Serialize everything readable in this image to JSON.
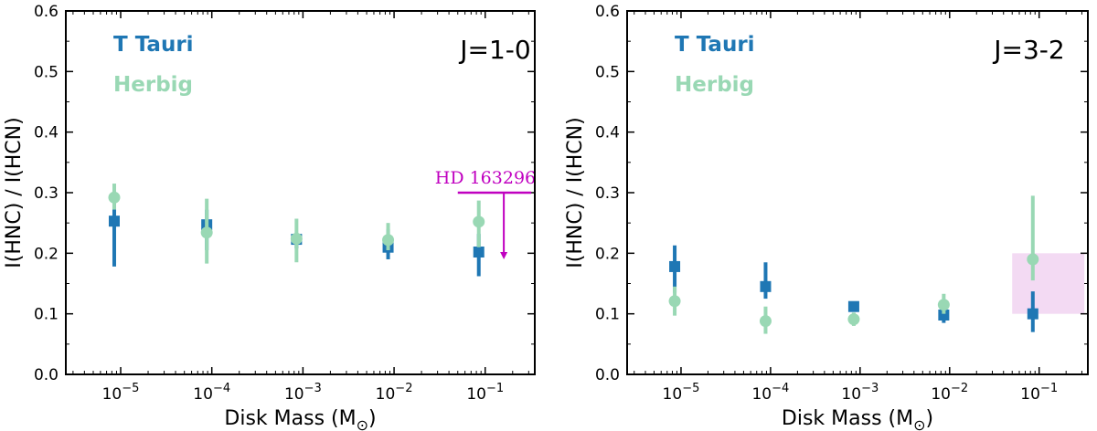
{
  "figure": {
    "ylabel": "I(HNC) / I(HCN)",
    "xlabel": "Disk Mass (M",
    "xlabel_sub": "⊙",
    "xlabel_close": ")"
  },
  "chart_data": [
    {
      "type": "scatter",
      "title": "J=1-0",
      "xlabel": "Disk Mass (M⊙)",
      "ylabel": "I(HNC) / I(HCN)",
      "xscale": "log",
      "xlim": [
        2.5e-06,
        0.35
      ],
      "ylim": [
        0,
        0.6
      ],
      "xticks": [
        1e-05,
        0.0001,
        0.001,
        0.01,
        0.1
      ],
      "xtick_labels": [
        [
          "10",
          "−5"
        ],
        [
          "10",
          "−4"
        ],
        [
          "10",
          "−3"
        ],
        [
          "10",
          "−2"
        ],
        [
          "10",
          "−1"
        ]
      ],
      "yticks": [
        0.0,
        0.1,
        0.2,
        0.3,
        0.4,
        0.5,
        0.6
      ],
      "ytick_labels": [
        "0.0",
        "0.1",
        "0.2",
        "0.3",
        "0.4",
        "0.5",
        "0.6"
      ],
      "legend": [
        {
          "label": "T Tauri",
          "color": "#1f77b4"
        },
        {
          "label": "Herbig",
          "color": "#99d8b4"
        }
      ],
      "series": [
        {
          "name": "T Tauri",
          "marker": "square",
          "color": "#1f77b4",
          "points": [
            {
              "x": 8.5e-06,
              "y": 0.253,
              "ylo": 0.178,
              "yhi": 0.285
            },
            {
              "x": 8.8e-05,
              "y": 0.247,
              "ylo": 0.205,
              "yhi": 0.272
            },
            {
              "x": 0.00085,
              "y": 0.223,
              "ylo": 0.208,
              "yhi": 0.232
            },
            {
              "x": 0.0086,
              "y": 0.21,
              "ylo": 0.19,
              "yhi": 0.24
            },
            {
              "x": 0.085,
              "y": 0.202,
              "ylo": 0.162,
              "yhi": 0.232
            }
          ]
        },
        {
          "name": "Herbig",
          "marker": "circle",
          "color": "#99d8b4",
          "points": [
            {
              "x": 8.5e-06,
              "y": 0.292,
              "ylo": 0.272,
              "yhi": 0.315
            },
            {
              "x": 8.8e-05,
              "y": 0.234,
              "ylo": 0.183,
              "yhi": 0.29
            },
            {
              "x": 0.00085,
              "y": 0.224,
              "ylo": 0.185,
              "yhi": 0.257
            },
            {
              "x": 0.0086,
              "y": 0.222,
              "ylo": 0.205,
              "yhi": 0.25
            },
            {
              "x": 0.085,
              "y": 0.252,
              "ylo": 0.21,
              "yhi": 0.287
            }
          ]
        }
      ],
      "annotation": {
        "type": "upper-limit",
        "label": "HD 163296",
        "color": "#c000c0",
        "x_from": 0.05,
        "x_to": 0.32,
        "y": 0.3,
        "arrow_x": 0.16,
        "arrow_to": 0.19
      }
    },
    {
      "type": "scatter",
      "title": "J=3-2",
      "xlabel": "Disk Mass (M⊙)",
      "ylabel": "I(HNC) / I(HCN)",
      "xscale": "log",
      "xlim": [
        2.5e-06,
        0.35
      ],
      "ylim": [
        0,
        0.6
      ],
      "xticks": [
        1e-05,
        0.0001,
        0.001,
        0.01,
        0.1
      ],
      "xtick_labels": [
        [
          "10",
          "−5"
        ],
        [
          "10",
          "−4"
        ],
        [
          "10",
          "−3"
        ],
        [
          "10",
          "−2"
        ],
        [
          "10",
          "−1"
        ]
      ],
      "yticks": [
        0.0,
        0.1,
        0.2,
        0.3,
        0.4,
        0.5,
        0.6
      ],
      "ytick_labels": [
        "0.0",
        "0.1",
        "0.2",
        "0.3",
        "0.4",
        "0.5",
        "0.6"
      ],
      "legend": [
        {
          "label": "T Tauri",
          "color": "#1f77b4"
        },
        {
          "label": "Herbig",
          "color": "#99d8b4"
        }
      ],
      "series": [
        {
          "name": "T Tauri",
          "marker": "square",
          "color": "#1f77b4",
          "points": [
            {
              "x": 8.5e-06,
              "y": 0.178,
              "ylo": 0.135,
              "yhi": 0.213
            },
            {
              "x": 8.8e-05,
              "y": 0.145,
              "ylo": 0.125,
              "yhi": 0.185
            },
            {
              "x": 0.00085,
              "y": 0.112,
              "ylo": 0.105,
              "yhi": 0.12
            },
            {
              "x": 0.0086,
              "y": 0.098,
              "ylo": 0.085,
              "yhi": 0.11
            },
            {
              "x": 0.085,
              "y": 0.1,
              "ylo": 0.07,
              "yhi": 0.137
            }
          ]
        },
        {
          "name": "Herbig",
          "marker": "circle",
          "color": "#99d8b4",
          "points": [
            {
              "x": 8.5e-06,
              "y": 0.121,
              "ylo": 0.097,
              "yhi": 0.145
            },
            {
              "x": 8.8e-05,
              "y": 0.088,
              "ylo": 0.067,
              "yhi": 0.112
            },
            {
              "x": 0.00085,
              "y": 0.091,
              "ylo": 0.08,
              "yhi": 0.102
            },
            {
              "x": 0.0086,
              "y": 0.115,
              "ylo": 0.1,
              "yhi": 0.133
            },
            {
              "x": 0.085,
              "y": 0.19,
              "ylo": 0.155,
              "yhi": 0.295
            }
          ]
        }
      ],
      "annotation": {
        "type": "shaded-region",
        "color": "#f3daf3",
        "x_from": 0.05,
        "x_to": 0.32,
        "y_from": 0.1,
        "y_to": 0.2
      }
    }
  ]
}
